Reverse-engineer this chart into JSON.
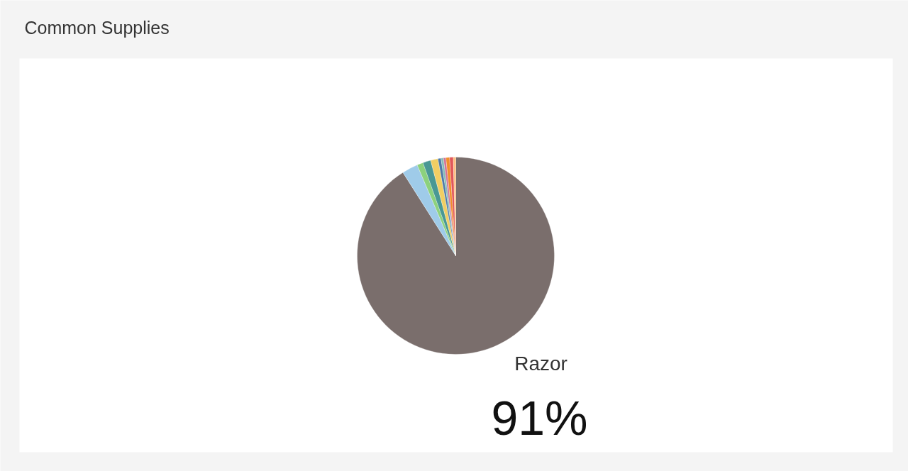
{
  "chart_data": {
    "type": "pie",
    "title": "Common Supplies",
    "categories": [
      "Razor",
      null,
      null,
      null,
      null,
      null,
      null,
      null,
      null,
      null,
      null
    ],
    "values": [
      91,
      2.6,
      1.0,
      1.3,
      1.2,
      0.5,
      0.4,
      0.4,
      0.6,
      0.6,
      0.4
    ],
    "colors": [
      "#7a6e6c",
      "#9fcbe9",
      "#8cd17d",
      "#499894",
      "#f1ce63",
      "#4e79a7",
      "#86bcb6",
      "#d37295",
      "#f28e2b",
      "#e15759",
      "#ffbe7d"
    ],
    "value_labels": [
      "91%",
      null,
      null,
      null,
      null,
      null,
      null,
      null,
      null,
      null,
      null
    ]
  }
}
